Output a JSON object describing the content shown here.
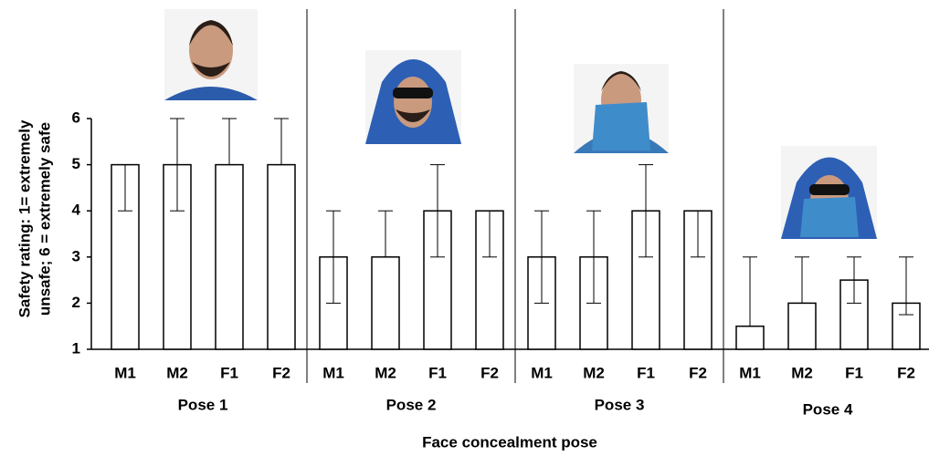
{
  "chart_data": {
    "type": "bar",
    "y_label_lines": [
      "Safety rating: 1= extremely",
      "unsafe; 6 = extremely safe"
    ],
    "x_label": "Face concealment pose",
    "ylim": [
      1,
      6
    ],
    "yticks": [
      1,
      2,
      3,
      4,
      5,
      6
    ],
    "color": "#ffffff",
    "edge_color": "#000000",
    "groups": [
      {
        "name": "Pose 1",
        "categories": [
          "M1",
          "M2",
          "F1",
          "F2"
        ],
        "values": [
          5,
          5,
          5,
          5
        ],
        "low": [
          4,
          4,
          5,
          5
        ],
        "high": [
          5,
          6,
          6,
          6
        ]
      },
      {
        "name": "Pose 2",
        "categories": [
          "M1",
          "M2",
          "F1",
          "F2"
        ],
        "values": [
          3,
          3,
          4,
          4
        ],
        "low": [
          2,
          3,
          3,
          3
        ],
        "high": [
          4,
          4,
          5,
          4
        ]
      },
      {
        "name": "Pose 3",
        "categories": [
          "M1",
          "M2",
          "F1",
          "F2"
        ],
        "values": [
          3,
          3,
          4,
          4
        ],
        "low": [
          2,
          2,
          3,
          3
        ],
        "high": [
          4,
          4,
          5,
          4
        ]
      },
      {
        "name": "Pose 4",
        "categories": [
          "M1",
          "M2",
          "F1",
          "F2"
        ],
        "values": [
          1.5,
          2,
          2.5,
          2
        ],
        "low": [
          1.5,
          2,
          2,
          1.75
        ],
        "high": [
          3,
          3,
          3,
          3
        ]
      }
    ]
  }
}
